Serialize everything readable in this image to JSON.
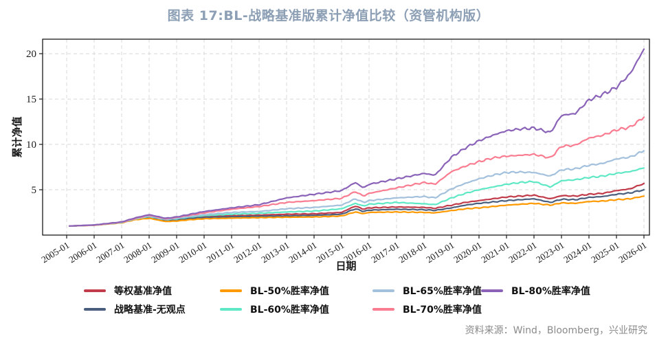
{
  "colors": {
    "title": "#8C9FB5",
    "source": "#8A8A8A",
    "grid": "#D8D8D8",
    "axis": "#1A1A1A"
  },
  "source": {
    "text": "资料来源：Wind，Bloomberg，兴业研究"
  },
  "chart_data": {
    "type": "line",
    "title": "图表 17:BL-战略基准版累计净值比较（资管机构版）",
    "xlabel": "日期",
    "ylabel": "累计净值",
    "legend_position": "bottom",
    "grid": "dashed",
    "x_ticks": [
      "2005-01",
      "2006-01",
      "2007-01",
      "2008-01",
      "2009-01",
      "2010-01",
      "2011-01",
      "2012-01",
      "2013-01",
      "2014-01",
      "2015-01",
      "2016-01",
      "2017-01",
      "2018-01",
      "2019-01",
      "2020-01",
      "2021-01",
      "2022-01",
      "2023-01",
      "2024-01",
      "2025-01",
      "2026-01"
    ],
    "y_ticks": [
      5,
      10,
      15,
      20
    ],
    "xlim": [
      2004.125,
      2026.2
    ],
    "ylim": [
      0,
      21.6
    ],
    "x": [
      2005.1,
      2006,
      2007,
      2007.5,
      2008,
      2008.6,
      2009,
      2009.5,
      2010,
      2011,
      2012,
      2013,
      2014,
      2015,
      2015.5,
      2015.8,
      2016,
      2017,
      2018,
      2018.4,
      2019,
      2019.5,
      2020,
      2020.5,
      2021,
      2021.5,
      2022,
      2022.6,
      2023,
      2023.5,
      2024,
      2024.5,
      2025,
      2025.5,
      2026
    ],
    "series": [
      {
        "name": "等权基准净值",
        "color": "#C13B4A",
        "values": [
          1.0,
          1.1,
          1.4,
          1.8,
          2.1,
          1.68,
          1.75,
          1.95,
          2.05,
          2.15,
          2.2,
          2.3,
          2.35,
          2.5,
          3.2,
          2.85,
          3.0,
          3.1,
          3.05,
          2.95,
          3.3,
          3.6,
          3.8,
          4.0,
          4.2,
          4.3,
          4.4,
          4.0,
          4.35,
          4.3,
          4.5,
          4.6,
          4.9,
          5.1,
          5.7
        ]
      },
      {
        "name": "战略基准-无观点",
        "color": "#4A5F7E",
        "values": [
          1.0,
          1.1,
          1.38,
          1.75,
          2.0,
          1.62,
          1.7,
          1.85,
          1.95,
          2.02,
          2.08,
          2.12,
          2.18,
          2.3,
          2.9,
          2.6,
          2.75,
          2.85,
          2.8,
          2.72,
          3.0,
          3.3,
          3.5,
          3.65,
          3.8,
          3.9,
          4.0,
          3.6,
          3.95,
          3.9,
          4.15,
          4.25,
          4.5,
          4.65,
          5.0
        ]
      },
      {
        "name": "BL-50%胜率净值",
        "color": "#FE9900",
        "values": [
          1.0,
          1.08,
          1.35,
          1.7,
          1.85,
          1.5,
          1.55,
          1.7,
          1.8,
          1.87,
          1.92,
          1.97,
          2.0,
          2.1,
          2.55,
          2.35,
          2.5,
          2.55,
          2.5,
          2.45,
          2.7,
          2.9,
          3.0,
          3.15,
          3.3,
          3.4,
          3.5,
          3.3,
          3.55,
          3.5,
          3.7,
          3.75,
          3.9,
          4.0,
          4.3
        ]
      },
      {
        "name": "BL-60%胜率净值",
        "color": "#5FE8C5",
        "values": [
          1.0,
          1.1,
          1.38,
          1.78,
          2.05,
          1.7,
          1.8,
          2.0,
          2.15,
          2.3,
          2.4,
          2.55,
          2.65,
          2.9,
          3.5,
          3.2,
          3.4,
          3.6,
          3.45,
          3.35,
          4.1,
          4.6,
          5.0,
          5.3,
          5.6,
          5.8,
          5.9,
          5.3,
          6.0,
          6.1,
          6.35,
          6.5,
          6.8,
          7.0,
          7.4
        ]
      },
      {
        "name": "BL-65%胜率净值",
        "color": "#A3C1DC",
        "values": [
          1.0,
          1.1,
          1.4,
          1.8,
          2.1,
          1.72,
          1.85,
          2.05,
          2.25,
          2.5,
          2.6,
          2.9,
          3.05,
          3.3,
          4.0,
          3.6,
          3.8,
          4.1,
          4.25,
          4.1,
          5.1,
          5.7,
          6.2,
          6.6,
          6.9,
          6.95,
          6.9,
          6.5,
          7.2,
          7.3,
          7.7,
          7.9,
          8.4,
          8.6,
          9.3
        ]
      },
      {
        "name": "BL-70%胜率净值",
        "color": "#F97C90",
        "values": [
          1.0,
          1.1,
          1.42,
          1.85,
          2.2,
          1.8,
          1.95,
          2.2,
          2.45,
          2.85,
          3.15,
          3.6,
          3.8,
          4.05,
          4.8,
          4.3,
          4.6,
          5.2,
          5.8,
          5.6,
          7.0,
          7.6,
          8.1,
          8.5,
          8.7,
          8.8,
          8.9,
          8.5,
          9.8,
          9.9,
          10.7,
          11.0,
          11.6,
          11.9,
          13.0
        ]
      },
      {
        "name": "BL-80%胜率净值",
        "color": "#8A63B8",
        "values": [
          1.0,
          1.12,
          1.45,
          1.9,
          2.25,
          1.85,
          2.0,
          2.3,
          2.6,
          3.0,
          3.35,
          4.1,
          4.5,
          4.9,
          5.8,
          5.2,
          5.6,
          6.2,
          6.8,
          6.6,
          8.6,
          9.6,
          10.4,
          11.0,
          11.5,
          11.7,
          11.8,
          11.3,
          13.2,
          13.4,
          14.9,
          15.5,
          16.3,
          17.8,
          20.5
        ]
      }
    ]
  }
}
